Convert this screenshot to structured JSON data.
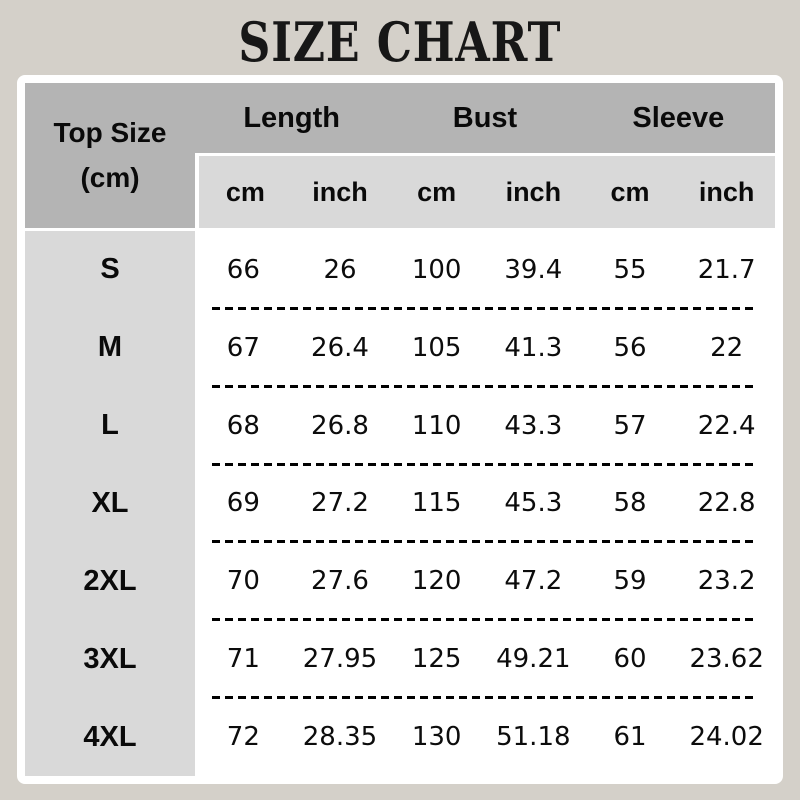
{
  "title": "SIZE CHART",
  "colors": {
    "page_background": "#d4d0c9",
    "header_bg": "#b4b4b4",
    "subheader_bg": "#d9d9d9",
    "data_bg": "#ffffff",
    "card_border": "#ffffff",
    "text": "#0a0a0a",
    "dash_line": "#000000"
  },
  "table": {
    "corner_header": {
      "line1": "Top Size",
      "line2": "(cm)"
    },
    "groups": [
      {
        "label": "Length"
      },
      {
        "label": "Bust"
      },
      {
        "label": "Sleeve"
      }
    ],
    "sub_headers": [
      "cm",
      "inch",
      "cm",
      "inch",
      "cm",
      "inch"
    ],
    "rows": [
      {
        "size": "S",
        "values": [
          "66",
          "26",
          "100",
          "39.4",
          "55",
          "21.7"
        ]
      },
      {
        "size": "M",
        "values": [
          "67",
          "26.4",
          "105",
          "41.3",
          "56",
          "22"
        ]
      },
      {
        "size": "L",
        "values": [
          "68",
          "26.8",
          "110",
          "43.3",
          "57",
          "22.4"
        ]
      },
      {
        "size": "XL",
        "values": [
          "69",
          "27.2",
          "115",
          "45.3",
          "58",
          "22.8"
        ]
      },
      {
        "size": "2XL",
        "values": [
          "70",
          "27.6",
          "120",
          "47.2",
          "59",
          "23.2"
        ]
      },
      {
        "size": "3XL",
        "values": [
          "71",
          "27.95",
          "125",
          "49.21",
          "60",
          "23.62"
        ]
      },
      {
        "size": "4XL",
        "values": [
          "72",
          "28.35",
          "130",
          "51.18",
          "61",
          "24.02"
        ]
      }
    ]
  }
}
